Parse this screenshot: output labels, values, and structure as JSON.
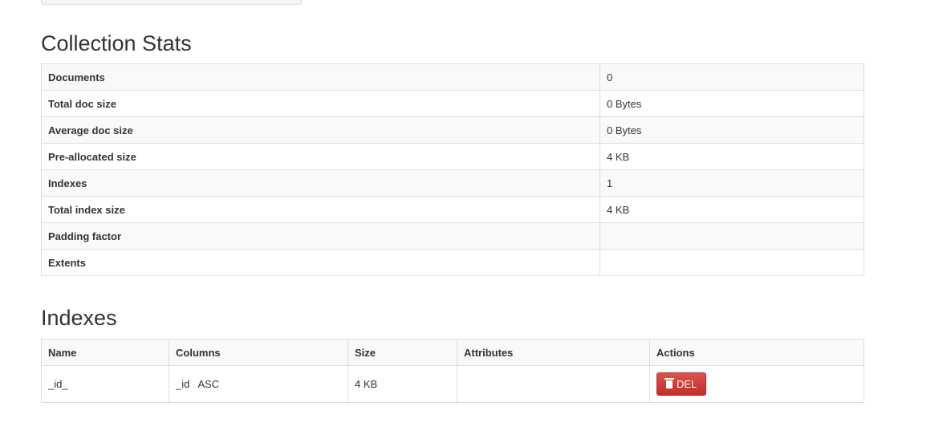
{
  "stats": {
    "title": "Collection Stats",
    "rows": [
      {
        "label": "Documents",
        "value": "0"
      },
      {
        "label": "Total doc size",
        "value": "0 Bytes"
      },
      {
        "label": "Average doc size",
        "value": "0 Bytes"
      },
      {
        "label": "Pre-allocated size",
        "value": "4 KB"
      },
      {
        "label": "Indexes",
        "value": "1"
      },
      {
        "label": "Total index size",
        "value": "4 KB"
      },
      {
        "label": "Padding factor",
        "value": ""
      },
      {
        "label": "Extents",
        "value": ""
      }
    ]
  },
  "indexes": {
    "title": "Indexes",
    "headers": [
      "Name",
      "Columns",
      "Size",
      "Attributes",
      "Actions"
    ],
    "rows": [
      {
        "name": "_id_",
        "columns": "_id   ASC",
        "size": "4 KB",
        "attributes": "",
        "action": "DEL"
      }
    ]
  },
  "colors": {
    "danger": "#d9534f"
  }
}
